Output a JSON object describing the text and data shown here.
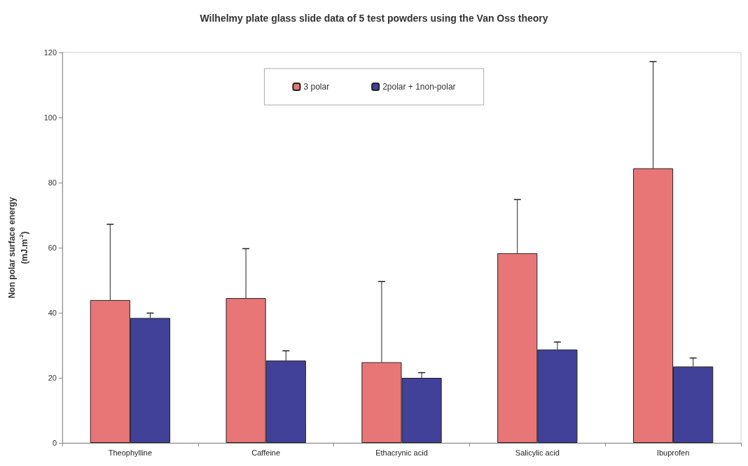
{
  "chart_data": {
    "type": "bar",
    "title": "Wilhelmy plate glass slide data of 5 test powders using the Van Oss theory",
    "ylabel": "Non polar surface energy\n(mJ.m$^{-2}$)",
    "categories": [
      "Theophylline",
      "Caffeine",
      "Ethacrynic acid",
      "Salicylic acid",
      "Ibuprofen"
    ],
    "series": [
      {
        "name": "3 polar",
        "color": "#e87676",
        "values": [
          43.9,
          44.5,
          24.8,
          58.3,
          84.4
        ],
        "errors": [
          [
            43.9,
            67.2
          ],
          [
            44.5,
            59.7
          ],
          [
            24.8,
            49.6
          ],
          [
            58.3,
            74.8
          ],
          [
            84.4,
            117.2
          ]
        ]
      },
      {
        "name": "2polar + 1non-polar",
        "color": "#414199",
        "values": [
          38.4,
          25.3,
          20.0,
          28.7,
          23.5
        ],
        "errors": [
          [
            38.4,
            39.9
          ],
          [
            25.3,
            28.3
          ],
          [
            20.0,
            21.6
          ],
          [
            28.7,
            31.0
          ],
          [
            23.5,
            26.1
          ]
        ]
      }
    ],
    "ylim": [
      0,
      120
    ],
    "yticks": [
      0,
      20,
      40,
      60,
      80,
      100,
      120
    ],
    "grid": false,
    "legend": "top"
  }
}
